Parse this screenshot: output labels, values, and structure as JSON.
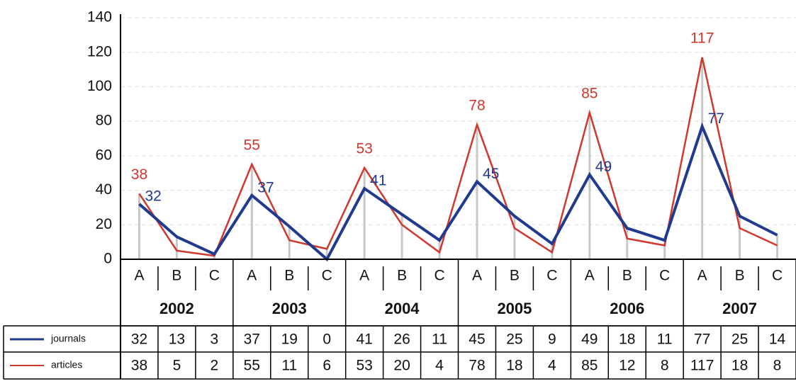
{
  "chart_data": {
    "type": "line",
    "categories": [
      "A",
      "B",
      "C",
      "A",
      "B",
      "C",
      "A",
      "B",
      "C",
      "A",
      "B",
      "C",
      "A",
      "B",
      "C",
      "A",
      "B",
      "C"
    ],
    "groups": [
      "2002",
      "2003",
      "2004",
      "2005",
      "2006",
      "2007"
    ],
    "series": [
      {
        "name": "journals",
        "color": "#1f3a8f",
        "values": [
          32,
          13,
          3,
          37,
          19,
          0,
          41,
          26,
          11,
          45,
          25,
          9,
          49,
          18,
          11,
          77,
          25,
          14
        ]
      },
      {
        "name": "articles",
        "color": "#d0372d",
        "values": [
          38,
          5,
          2,
          55,
          11,
          6,
          53,
          20,
          4,
          78,
          18,
          4,
          85,
          12,
          8,
          117,
          18,
          8
        ]
      }
    ],
    "ylim": [
      0,
      140
    ],
    "yticks": [
      0,
      20,
      40,
      60,
      80,
      100,
      120,
      140
    ],
    "grid": true
  }
}
